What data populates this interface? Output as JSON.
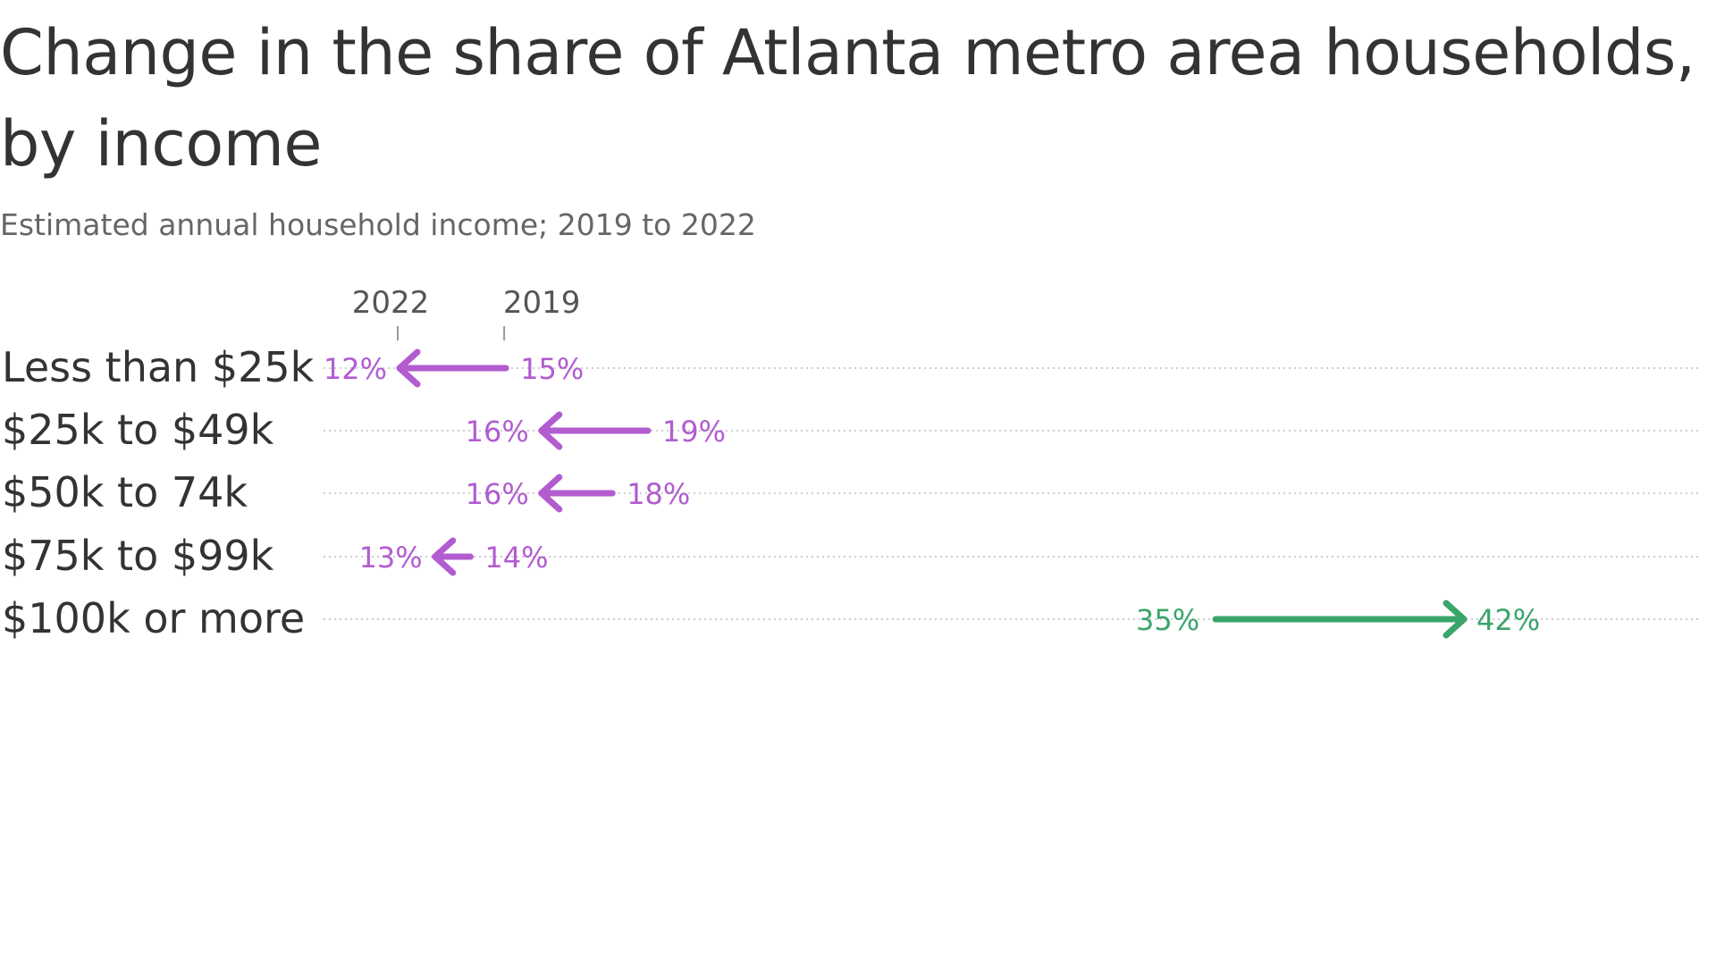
{
  "chart_data": {
    "type": "arrow",
    "title": "Change in the share of Atlanta metro area households, by income",
    "subtitle": "Estimated annual household income; 2019 to 2022",
    "start_label": "2019",
    "end_label": "2022",
    "categories": [
      "Less than $25k",
      "$25k to $49k",
      "$50k to 74k",
      "$75k to $99k",
      "$100k or more"
    ],
    "series": [
      {
        "name": "2019",
        "values": [
          15,
          19,
          18,
          14,
          35
        ]
      },
      {
        "name": "2022",
        "values": [
          12,
          16,
          16,
          13,
          42
        ]
      }
    ],
    "value_labels_2019": [
      "15%",
      "19%",
      "18%",
      "14%",
      "35%"
    ],
    "value_labels_2022": [
      "12%",
      "16%",
      "16%",
      "13%",
      "42%"
    ],
    "colors": {
      "decrease": "#b25cd0",
      "increase": "#3aa56b",
      "text": "#333333",
      "grid": "#cccccc"
    }
  }
}
